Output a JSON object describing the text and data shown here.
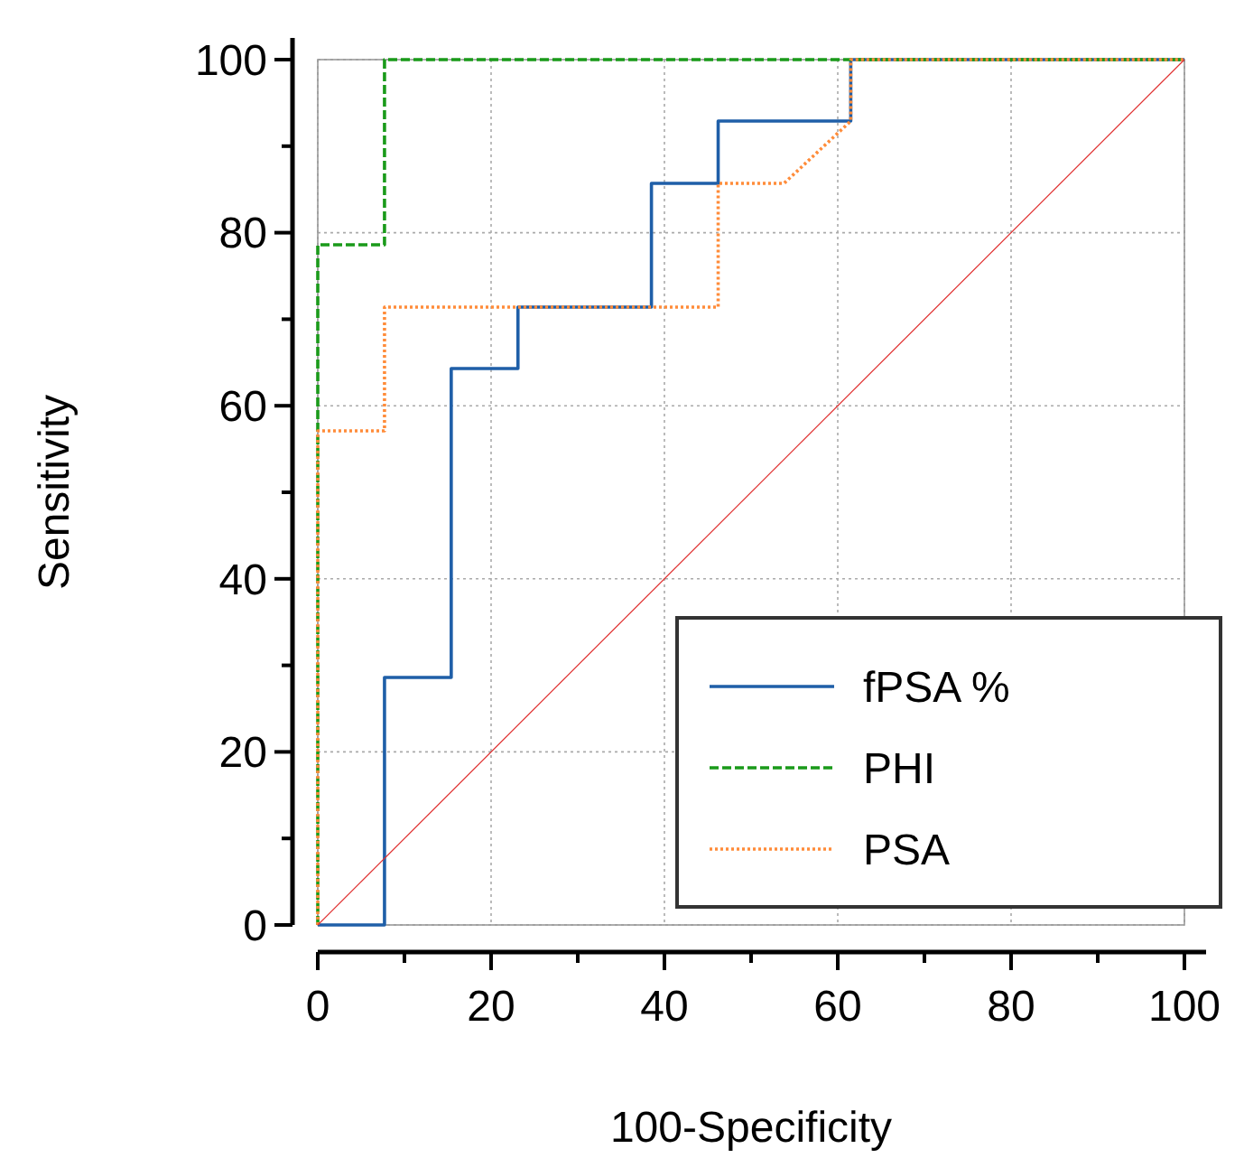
{
  "chart_data": {
    "type": "line",
    "xlabel": "100-Specificity",
    "ylabel": "Sensitivity",
    "xlim": [
      0,
      100
    ],
    "ylim": [
      0,
      100
    ],
    "xticks": [
      0,
      20,
      40,
      60,
      80,
      100
    ],
    "yticks": [
      0,
      20,
      40,
      60,
      80,
      100
    ],
    "grid": true,
    "legend": "bottom right",
    "marker": "none",
    "series": [
      {
        "name": "fPSA %",
        "color": "#1f5fa8",
        "line_style": "solid",
        "x": [
          0,
          7.7,
          7.7,
          15.4,
          15.4,
          23.1,
          23.1,
          38.5,
          38.5,
          46.2,
          46.2,
          61.5,
          61.5,
          100
        ],
        "values": [
          0,
          0,
          28.6,
          28.6,
          64.3,
          64.3,
          71.4,
          71.4,
          85.7,
          85.7,
          92.9,
          92.9,
          100,
          100
        ]
      },
      {
        "name": "PHI",
        "color": "#1a9a1a",
        "line_style": "dashed",
        "x": [
          0,
          0,
          7.7,
          7.7,
          100
        ],
        "values": [
          0,
          78.6,
          78.6,
          100,
          100
        ]
      },
      {
        "name": "PSA",
        "color": "#ff8c3a",
        "line_style": "dotted",
        "x": [
          0,
          0,
          7.7,
          7.7,
          46.2,
          46.2,
          53.8,
          61.5,
          61.5,
          100
        ],
        "values": [
          0,
          57.1,
          57.1,
          71.4,
          71.4,
          85.7,
          85.7,
          92.9,
          100,
          100
        ]
      },
      {
        "color": "#e03030",
        "line_style": "solid",
        "x": [
          0,
          100
        ],
        "values": [
          0,
          100
        ]
      }
    ]
  }
}
